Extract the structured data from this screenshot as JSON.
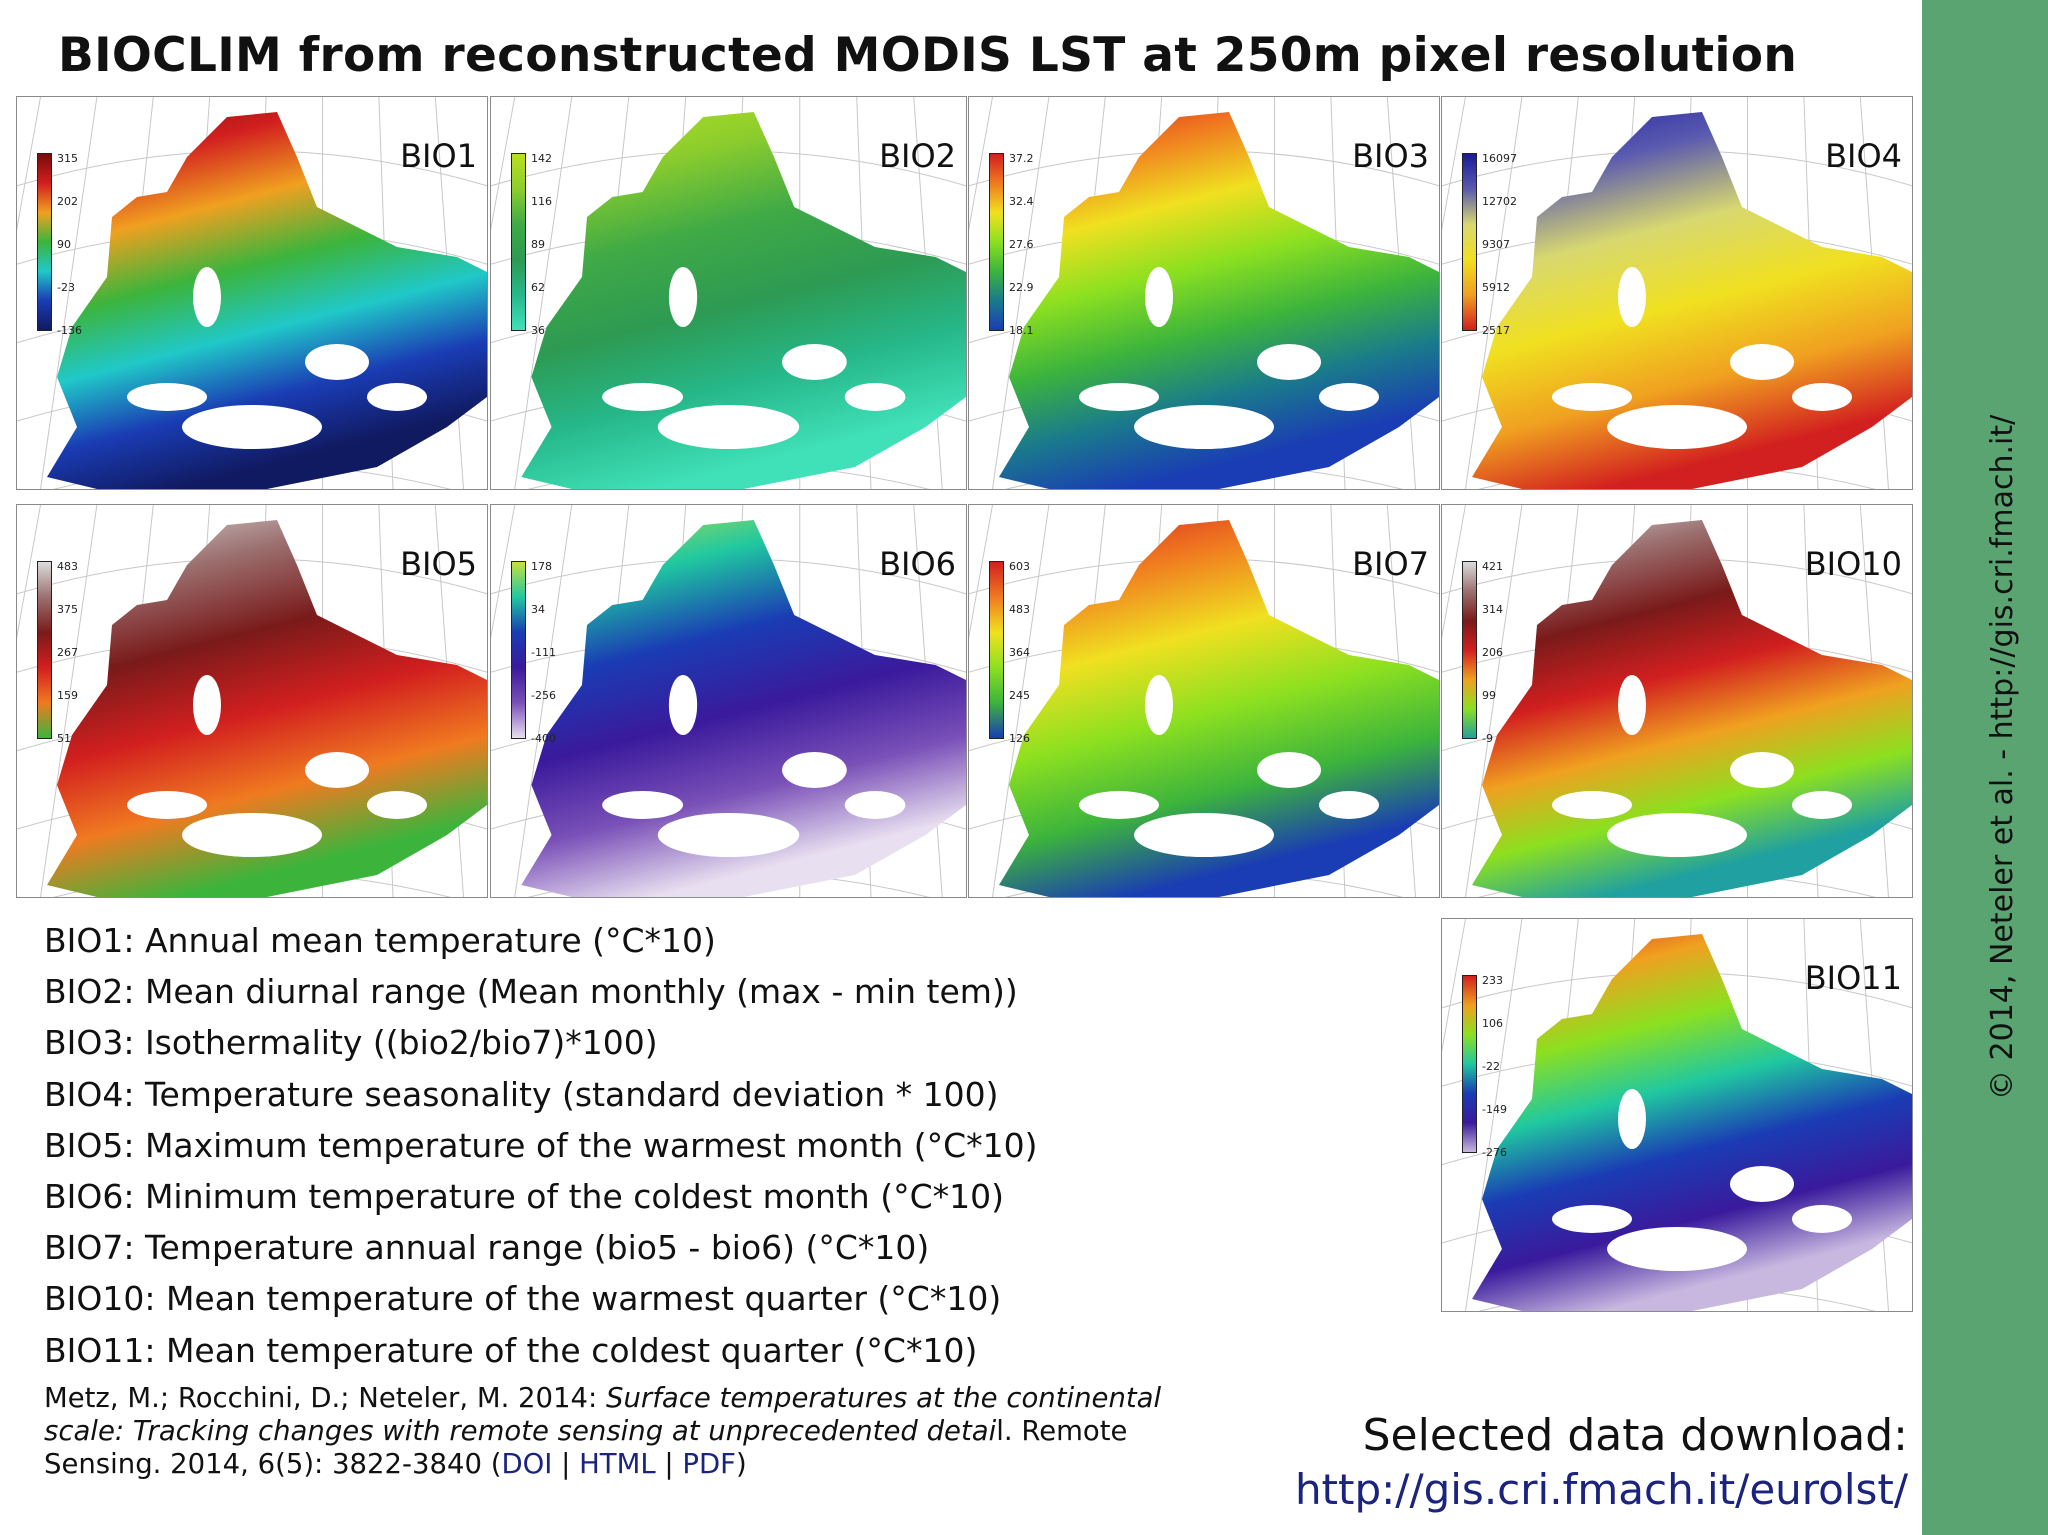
{
  "title": "BIOCLIM from reconstructed MODIS LST at 250m pixel resolution",
  "side_credit": "© 2014, Neteler et al. - http://gis.cri.fmach.it/",
  "panels": [
    {
      "label": "BIO1",
      "ticks": [
        "315",
        "202",
        "90",
        "-23",
        "-136"
      ],
      "colors": [
        "#7a0a0a",
        "#d21f1f",
        "#f0a020",
        "#3cb43c",
        "#20c8c8",
        "#1a3cb4",
        "#101a60"
      ]
    },
    {
      "label": "BIO2",
      "ticks": [
        "142",
        "116",
        "89",
        "62",
        "36"
      ],
      "colors": [
        "#b8e020",
        "#8ccd2d",
        "#3faa46",
        "#2d9a52",
        "#26b88a",
        "#40e0b8"
      ]
    },
    {
      "label": "BIO3",
      "ticks": [
        "37.2",
        "32.4",
        "27.6",
        "22.9",
        "18.1"
      ],
      "colors": [
        "#d21f1f",
        "#f07a20",
        "#f0e020",
        "#8ce020",
        "#3cb43c",
        "#1a7a8c",
        "#1a3cb4"
      ]
    },
    {
      "label": "BIO4",
      "ticks": [
        "16097",
        "12702",
        "9307",
        "5912",
        "2517"
      ],
      "colors": [
        "#1a1a9c",
        "#5a5ab0",
        "#d8d870",
        "#f0e020",
        "#f0a020",
        "#d21f1f"
      ]
    },
    {
      "label": "BIO5",
      "ticks": [
        "483",
        "375",
        "267",
        "159",
        "51"
      ],
      "colors": [
        "#dcdcdc",
        "#9c7070",
        "#7a1a1a",
        "#d21f1f",
        "#f07a20",
        "#3cb43c"
      ]
    },
    {
      "label": "BIO6",
      "ticks": [
        "178",
        "34",
        "-111",
        "-256",
        "-400"
      ],
      "colors": [
        "#c8e040",
        "#20c8a0",
        "#1a3cb4",
        "#3a1a9c",
        "#7a50b8",
        "#e8e0f0"
      ]
    },
    {
      "label": "BIO7",
      "ticks": [
        "603",
        "483",
        "364",
        "245",
        "126"
      ],
      "colors": [
        "#d21f1f",
        "#f07a20",
        "#f0e020",
        "#8ce020",
        "#3cb43c",
        "#1a3cb4"
      ]
    },
    {
      "label": "BIO10",
      "ticks": [
        "421",
        "314",
        "206",
        "99",
        "-9"
      ],
      "colors": [
        "#dcdcdc",
        "#9c7070",
        "#7a1a1a",
        "#d21f1f",
        "#f0a020",
        "#8ce020",
        "#20a0a0"
      ]
    },
    {
      "label": "BIO11",
      "ticks": [
        "233",
        "106",
        "-22",
        "-149",
        "-276"
      ],
      "colors": [
        "#d21f1f",
        "#f0a020",
        "#8ce020",
        "#20c8a0",
        "#1a3cb4",
        "#3a1a9c",
        "#c8b8e0"
      ]
    }
  ],
  "definitions": [
    "BIO1: Annual mean temperature (°C*10)",
    "BIO2: Mean diurnal range (Mean monthly (max - min tem))",
    "BIO3: Isothermality ((bio2/bio7)*100)",
    "BIO4: Temperature seasonality (standard deviation * 100)",
    "BIO5: Maximum temperature of the warmest month (°C*10)",
    "BIO6: Minimum temperature of the coldest month (°C*10)",
    "BIO7: Temperature annual range (bio5 - bio6) (°C*10)",
    "BIO10: Mean temperature of the warmest quarter (°C*10)",
    "BIO11: Mean temperature of the coldest quarter (°C*10)"
  ],
  "citation": {
    "authors": "Metz, M.; Rocchini, D.; Neteler, M. 2014: ",
    "title_part1": "Surface temperatures at the continental scale: Tracking changes with remote sensing at unprecedented detai",
    "title_part2": "l",
    "journal": ". Remote Sensing. 2014, 6(5): 3822-3840 (",
    "doi": "DOI",
    "sep1": " | ",
    "html": "HTML",
    "sep2": " | ",
    "pdf": "PDF",
    "close": ")"
  },
  "download": {
    "label": "Selected data download:",
    "url": "http://gis.cri.fmach.it/eurolst/"
  }
}
